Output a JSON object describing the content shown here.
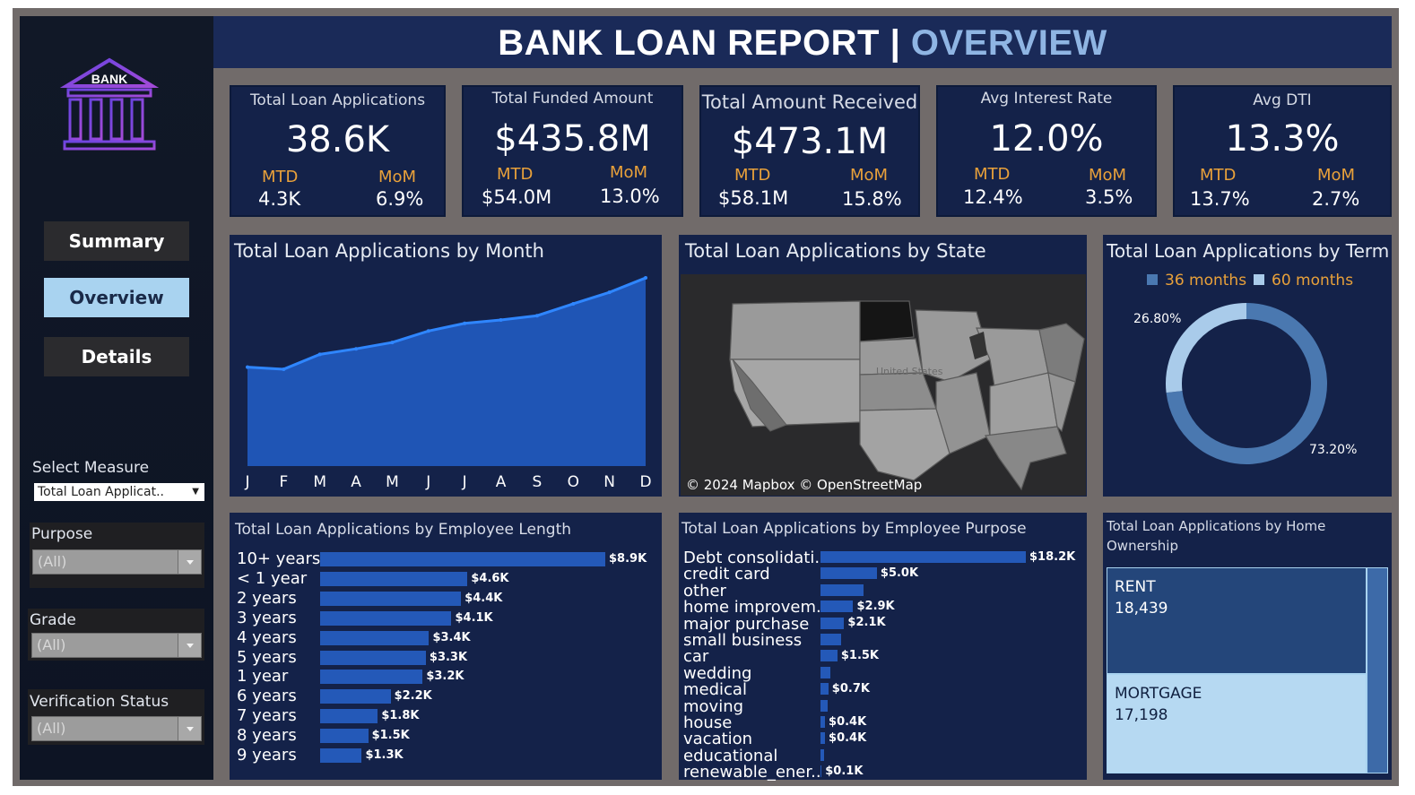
{
  "title": {
    "main": "BANK LOAN REPORT | ",
    "highlight": "OVERVIEW"
  },
  "logo": {
    "text": "BANK"
  },
  "nav": {
    "summary": "Summary",
    "overview": "Overview",
    "details": "Details"
  },
  "filters": {
    "measure_label": "Select Measure",
    "measure_value": "Total Loan Applicat..",
    "purpose_label": "Purpose",
    "purpose_value": "(All)",
    "grade_label": "Grade",
    "grade_value": "(All)",
    "verification_label": "Verification Status",
    "verification_value": "(All)"
  },
  "kpis": [
    {
      "title": "Total Loan Applications",
      "value": "38.6K",
      "mtd_label": "MTD",
      "mtd": "4.3K",
      "mom_label": "MoM",
      "mom": "6.9%"
    },
    {
      "title": "Total Funded Amount",
      "value": "$435.8M",
      "mtd_label": "MTD",
      "mtd": "$54.0M",
      "mom_label": "MoM",
      "mom": "13.0%"
    },
    {
      "title": "Total Amount Received",
      "value": "$473.1M",
      "mtd_label": "MTD",
      "mtd": "$58.1M",
      "mom_label": "MoM",
      "mom": "15.8%"
    },
    {
      "title": "Avg Interest Rate",
      "value": "12.0%",
      "mtd_label": "MTD",
      "mtd": "12.4%",
      "mom_label": "MoM",
      "mom": "3.5%"
    },
    {
      "title": "Avg DTI",
      "value": "13.3%",
      "mtd_label": "MTD",
      "mtd": "13.7%",
      "mom_label": "MoM",
      "mom": "2.7%"
    }
  ],
  "colors": {
    "bar": "#2459b8",
    "area": "#1f55b5",
    "line": "#2f86ff",
    "accent": "#e9a13a",
    "panel": "#142249"
  },
  "chart_data": [
    {
      "type": "area",
      "title": "Total Loan Applications by Month",
      "categories": [
        "J",
        "F",
        "M",
        "A",
        "M",
        "J",
        "J",
        "A",
        "S",
        "O",
        "N",
        "D"
      ],
      "values": [
        2.33,
        2.28,
        2.63,
        2.76,
        2.91,
        3.18,
        3.36,
        3.44,
        3.54,
        3.82,
        4.09,
        4.43
      ],
      "ylim": [
        0,
        4.6
      ],
      "grid": false
    },
    {
      "type": "bar",
      "orientation": "horizontal",
      "title": "Total Loan Applications by Employee Length",
      "categories": [
        "10+ years",
        "< 1 year",
        "2 years",
        "3 years",
        "4 years",
        "5 years",
        "1 year",
        "6 years",
        "7 years",
        "8 years",
        "9 years"
      ],
      "values": [
        8.9,
        4.6,
        4.4,
        4.1,
        3.4,
        3.3,
        3.2,
        2.2,
        1.8,
        1.5,
        1.3
      ],
      "labels": [
        "$8.9K",
        "$4.6K",
        "$4.4K",
        "$4.1K",
        "$3.4K",
        "$3.3K",
        "$3.2K",
        "$2.2K",
        "$1.8K",
        "$1.5K",
        "$1.3K"
      ]
    },
    {
      "type": "bar",
      "orientation": "horizontal",
      "title": "Total Loan Applications by Employee Purpose",
      "categories": [
        "Debt consolidati..",
        "credit card",
        "other",
        "home improvem..",
        "major purchase",
        "small business",
        "car",
        "wedding",
        "medical",
        "moving",
        "house",
        "vacation",
        "educational",
        "renewable_ener.."
      ],
      "values": [
        18.2,
        5.0,
        3.8,
        2.9,
        2.1,
        1.8,
        1.5,
        0.9,
        0.7,
        0.6,
        0.4,
        0.4,
        0.3,
        0.1
      ],
      "labels": [
        "$18.2K",
        "$5.0K",
        "",
        "$2.9K",
        "$2.1K",
        "",
        "$1.5K",
        "",
        "$0.7K",
        "",
        "$0.4K",
        "$0.4K",
        "",
        "$0.1K"
      ]
    },
    {
      "type": "pie",
      "title": "Total Loan Applications by Term",
      "legend": [
        "36 months",
        "60 months"
      ],
      "values": [
        73.2,
        26.8
      ],
      "labels": [
        "73.20%",
        "26.80%"
      ],
      "colors": [
        "#4a78b0",
        "#a9cbea"
      ]
    },
    {
      "type": "treemap",
      "title": "Total Loan Applications by Home Ownership",
      "categories": [
        "RENT",
        "MORTGAGE"
      ],
      "values": [
        18439,
        17198
      ],
      "labels": [
        "18,439",
        "17,198"
      ]
    }
  ],
  "map": {
    "title": "Total Loan Applications by State",
    "attribution": "© 2024 Mapbox © OpenStreetMap",
    "country_label": "United States"
  }
}
